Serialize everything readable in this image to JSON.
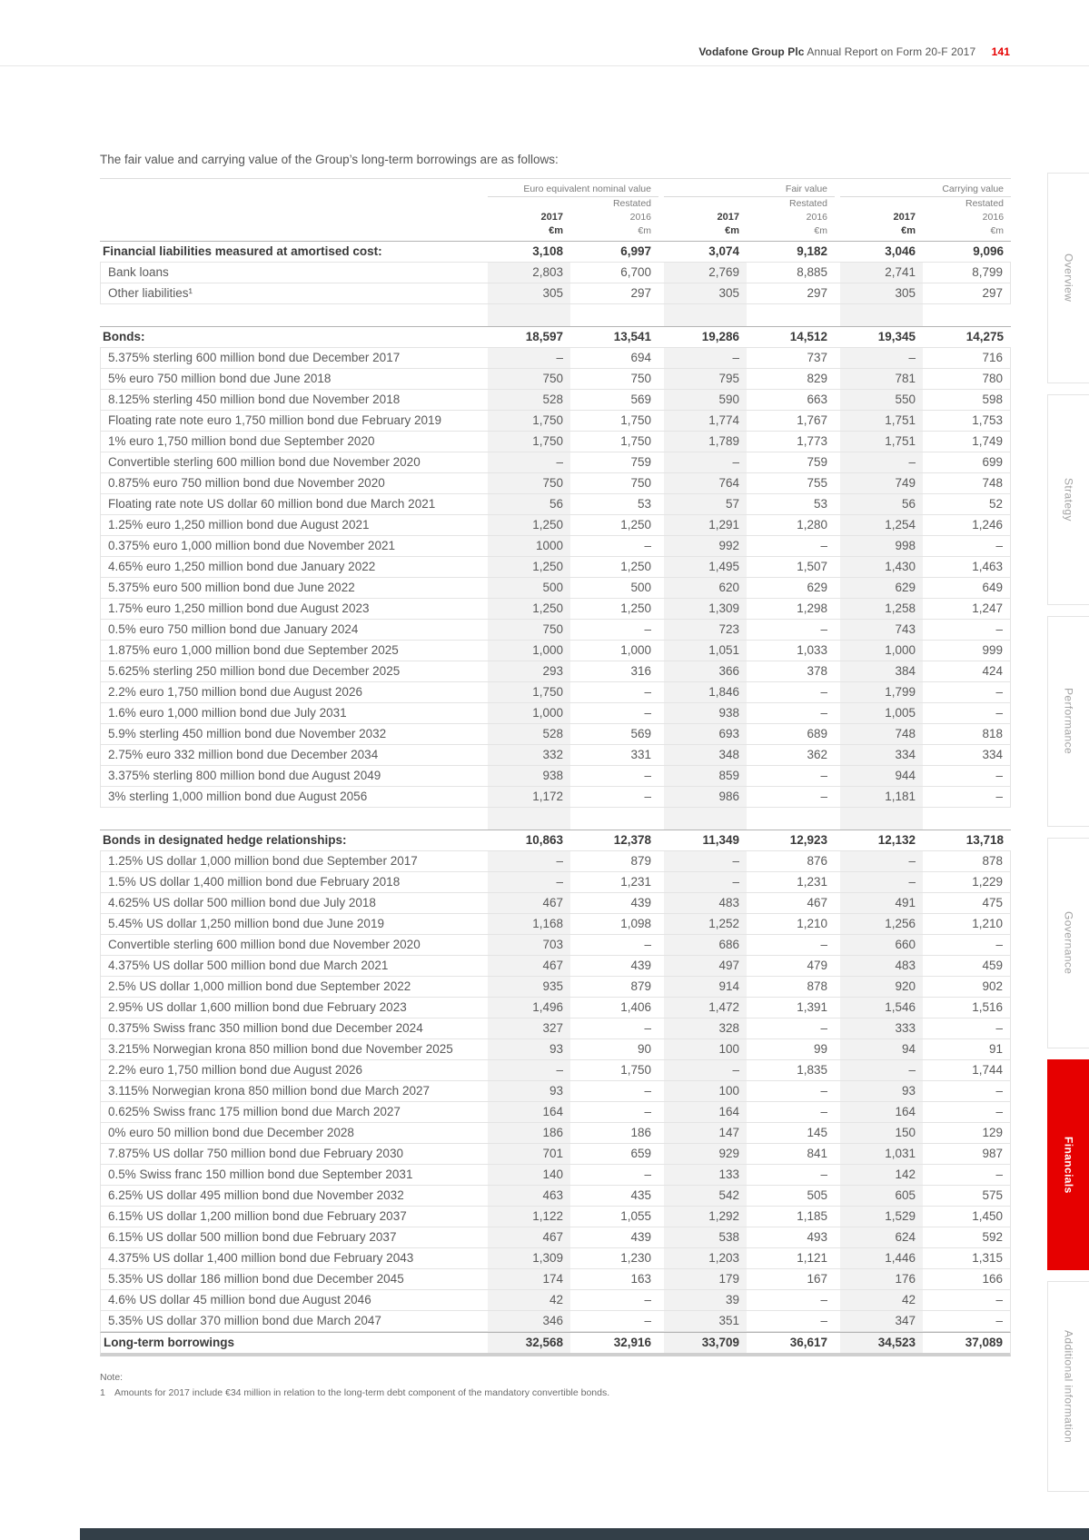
{
  "page_header": {
    "brand": "Vodafone Group Plc",
    "title": "Annual Report on Form 20-F 2017",
    "page_number": "141"
  },
  "intro": "The fair value and carrying value of the Group’s long-term borrowings are as follows:",
  "colors": {
    "accent_red": "#e60000",
    "column_shade": "#f2f2f2",
    "footer_bar": "#333f48"
  },
  "table": {
    "group_headers": [
      "Euro equivalent nominal value",
      "Fair value",
      "Carrying value"
    ],
    "restated_label": "Restated",
    "years": [
      "2017",
      "2016"
    ],
    "unit": "€m",
    "rows": [
      {
        "type": "section",
        "label": "Financial liabilities measured at amortised cost:",
        "values": [
          "3,108",
          "6,997",
          "3,074",
          "9,182",
          "3,046",
          "9,096"
        ]
      },
      {
        "type": "item",
        "label": "Bank loans",
        "values": [
          "2,803",
          "6,700",
          "2,769",
          "8,885",
          "2,741",
          "8,799"
        ]
      },
      {
        "type": "item",
        "label": "Other liabilities¹",
        "values": [
          "305",
          "297",
          "305",
          "297",
          "305",
          "297"
        ]
      },
      {
        "type": "spacer"
      },
      {
        "type": "section",
        "label": "Bonds:",
        "values": [
          "18,597",
          "13,541",
          "19,286",
          "14,512",
          "19,345",
          "14,275"
        ]
      },
      {
        "type": "item",
        "label": "5.375% sterling 600 million bond due December 2017",
        "values": [
          "–",
          "694",
          "–",
          "737",
          "–",
          "716"
        ]
      },
      {
        "type": "item",
        "label": "5% euro 750 million bond due June 2018",
        "values": [
          "750",
          "750",
          "795",
          "829",
          "781",
          "780"
        ]
      },
      {
        "type": "item",
        "label": "8.125% sterling 450 million bond due November 2018",
        "values": [
          "528",
          "569",
          "590",
          "663",
          "550",
          "598"
        ]
      },
      {
        "type": "item",
        "label": "Floating rate note euro 1,750 million bond due February 2019",
        "values": [
          "1,750",
          "1,750",
          "1,774",
          "1,767",
          "1,751",
          "1,753"
        ]
      },
      {
        "type": "item",
        "label": "1% euro 1,750 million bond due September 2020",
        "values": [
          "1,750",
          "1,750",
          "1,789",
          "1,773",
          "1,751",
          "1,749"
        ]
      },
      {
        "type": "item",
        "label": "Convertible sterling 600 million bond due November 2020",
        "values": [
          "–",
          "759",
          "–",
          "759",
          "–",
          "699"
        ]
      },
      {
        "type": "item",
        "label": "0.875% euro 750 million bond due November 2020",
        "values": [
          "750",
          "750",
          "764",
          "755",
          "749",
          "748"
        ]
      },
      {
        "type": "item",
        "label": "Floating rate note US dollar 60 million bond due March 2021",
        "values": [
          "56",
          "53",
          "57",
          "53",
          "56",
          "52"
        ]
      },
      {
        "type": "item",
        "label": "1.25% euro 1,250 million bond due August 2021",
        "values": [
          "1,250",
          "1,250",
          "1,291",
          "1,280",
          "1,254",
          "1,246"
        ]
      },
      {
        "type": "item",
        "label": "0.375% euro 1,000 million bond due November 2021",
        "values": [
          "1000",
          "–",
          "992",
          "–",
          "998",
          "–"
        ]
      },
      {
        "type": "item",
        "label": "4.65% euro 1,250 million bond due January 2022",
        "values": [
          "1,250",
          "1,250",
          "1,495",
          "1,507",
          "1,430",
          "1,463"
        ]
      },
      {
        "type": "item",
        "label": "5.375% euro 500 million bond due June 2022",
        "values": [
          "500",
          "500",
          "620",
          "629",
          "629",
          "649"
        ]
      },
      {
        "type": "item",
        "label": "1.75% euro 1,250 million bond due August 2023",
        "values": [
          "1,250",
          "1,250",
          "1,309",
          "1,298",
          "1,258",
          "1,247"
        ]
      },
      {
        "type": "item",
        "label": "0.5% euro 750 million bond due January 2024",
        "values": [
          "750",
          "–",
          "723",
          "–",
          "743",
          "–"
        ]
      },
      {
        "type": "item",
        "label": "1.875% euro 1,000 million bond due September 2025",
        "values": [
          "1,000",
          "1,000",
          "1,051",
          "1,033",
          "1,000",
          "999"
        ]
      },
      {
        "type": "item",
        "label": "5.625% sterling 250 million bond due December 2025",
        "values": [
          "293",
          "316",
          "366",
          "378",
          "384",
          "424"
        ]
      },
      {
        "type": "item",
        "label": "2.2% euro 1,750 million bond due August 2026",
        "values": [
          "1,750",
          "–",
          "1,846",
          "–",
          "1,799",
          "–"
        ]
      },
      {
        "type": "item",
        "label": "1.6% euro 1,000 million bond due July 2031",
        "values": [
          "1,000",
          "–",
          "938",
          "–",
          "1,005",
          "–"
        ]
      },
      {
        "type": "item",
        "label": "5.9% sterling 450 million bond due November 2032",
        "values": [
          "528",
          "569",
          "693",
          "689",
          "748",
          "818"
        ]
      },
      {
        "type": "item",
        "label": "2.75% euro 332 million bond due December 2034",
        "values": [
          "332",
          "331",
          "348",
          "362",
          "334",
          "334"
        ]
      },
      {
        "type": "item",
        "label": "3.375% sterling 800 million bond due August 2049",
        "values": [
          "938",
          "–",
          "859",
          "–",
          "944",
          "–"
        ]
      },
      {
        "type": "item",
        "label": "3% sterling 1,000 million bond due August 2056",
        "values": [
          "1,172",
          "–",
          "986",
          "–",
          "1,181",
          "–"
        ]
      },
      {
        "type": "spacer"
      },
      {
        "type": "section",
        "label": "Bonds in designated hedge relationships:",
        "values": [
          "10,863",
          "12,378",
          "11,349",
          "12,923",
          "12,132",
          "13,718"
        ]
      },
      {
        "type": "item",
        "label": "1.25% US dollar 1,000 million bond due September 2017",
        "values": [
          "–",
          "879",
          "–",
          "876",
          "–",
          "878"
        ]
      },
      {
        "type": "item",
        "label": "1.5% US dollar 1,400 million bond due February 2018",
        "values": [
          "–",
          "1,231",
          "–",
          "1,231",
          "–",
          "1,229"
        ]
      },
      {
        "type": "item",
        "label": "4.625% US dollar 500 million bond due July 2018",
        "values": [
          "467",
          "439",
          "483",
          "467",
          "491",
          "475"
        ]
      },
      {
        "type": "item",
        "label": "5.45% US dollar 1,250 million bond due June 2019",
        "values": [
          "1,168",
          "1,098",
          "1,252",
          "1,210",
          "1,256",
          "1,210"
        ]
      },
      {
        "type": "item",
        "label": "Convertible sterling 600 million bond due November 2020",
        "values": [
          "703",
          "–",
          "686",
          "–",
          "660",
          "–"
        ]
      },
      {
        "type": "item",
        "label": "4.375% US dollar 500 million bond due March 2021",
        "values": [
          "467",
          "439",
          "497",
          "479",
          "483",
          "459"
        ]
      },
      {
        "type": "item",
        "label": "2.5% US dollar 1,000 million bond due September 2022",
        "values": [
          "935",
          "879",
          "914",
          "878",
          "920",
          "902"
        ]
      },
      {
        "type": "item",
        "label": "2.95% US dollar 1,600 million bond due February 2023",
        "values": [
          "1,496",
          "1,406",
          "1,472",
          "1,391",
          "1,546",
          "1,516"
        ]
      },
      {
        "type": "item",
        "label": "0.375% Swiss franc 350 million bond due December 2024",
        "values": [
          "327",
          "–",
          "328",
          "–",
          "333",
          "–"
        ]
      },
      {
        "type": "item",
        "label": "3.215% Norwegian krona 850 million bond due November 2025",
        "values": [
          "93",
          "90",
          "100",
          "99",
          "94",
          "91"
        ]
      },
      {
        "type": "item",
        "label": "2.2% euro 1,750 million bond due August 2026",
        "values": [
          "–",
          "1,750",
          "–",
          "1,835",
          "–",
          "1,744"
        ]
      },
      {
        "type": "item",
        "label": "3.115% Norwegian krona 850 million bond due March 2027",
        "values": [
          "93",
          "–",
          "100",
          "–",
          "93",
          "–"
        ]
      },
      {
        "type": "item",
        "label": "0.625% Swiss franc 175 million bond due March 2027",
        "values": [
          "164",
          "–",
          "164",
          "–",
          "164",
          "–"
        ]
      },
      {
        "type": "item",
        "label": "0% euro 50 million bond due December 2028",
        "values": [
          "186",
          "186",
          "147",
          "145",
          "150",
          "129"
        ]
      },
      {
        "type": "item",
        "label": "7.875% US dollar 750 million bond due February 2030",
        "values": [
          "701",
          "659",
          "929",
          "841",
          "1,031",
          "987"
        ]
      },
      {
        "type": "item",
        "label": "0.5% Swiss franc 150 million bond due September 2031",
        "values": [
          "140",
          "–",
          "133",
          "–",
          "142",
          "–"
        ]
      },
      {
        "type": "item",
        "label": "6.25% US dollar 495 million bond due November 2032",
        "values": [
          "463",
          "435",
          "542",
          "505",
          "605",
          "575"
        ]
      },
      {
        "type": "item",
        "label": "6.15% US dollar 1,200 million bond due February 2037",
        "values": [
          "1,122",
          "1,055",
          "1,292",
          "1,185",
          "1,529",
          "1,450"
        ]
      },
      {
        "type": "item",
        "label": "6.15% US dollar 500 million bond due February 2037",
        "values": [
          "467",
          "439",
          "538",
          "493",
          "624",
          "592"
        ]
      },
      {
        "type": "item",
        "label": "4.375% US dollar 1,400 million bond due February 2043",
        "values": [
          "1,309",
          "1,230",
          "1,203",
          "1,121",
          "1,446",
          "1,315"
        ]
      },
      {
        "type": "item",
        "label": "5.35% US dollar 186 million bond due December 2045",
        "values": [
          "174",
          "163",
          "179",
          "167",
          "176",
          "166"
        ]
      },
      {
        "type": "item",
        "label": "4.6% US dollar 45 million bond due August 2046",
        "values": [
          "42",
          "–",
          "39",
          "–",
          "42",
          "–"
        ]
      },
      {
        "type": "item",
        "label": "5.35% US dollar 370 million bond due March 2047",
        "values": [
          "346",
          "–",
          "351",
          "–",
          "347",
          "–"
        ]
      },
      {
        "type": "total",
        "label": "Long-term borrowings",
        "values": [
          "32,568",
          "32,916",
          "33,709",
          "36,617",
          "34,523",
          "37,089"
        ]
      }
    ]
  },
  "note": {
    "heading": "Note:",
    "items": [
      {
        "num": "1",
        "text": "Amounts for 2017 include €34 million in relation to the long-term debt component of the mandatory convertible bonds."
      }
    ]
  },
  "sidebar": {
    "tabs": [
      {
        "label": "Overview",
        "active": false
      },
      {
        "label": "Strategy",
        "active": false
      },
      {
        "label": "Performance",
        "active": false
      },
      {
        "label": "Governance",
        "active": false
      },
      {
        "label": "Financials",
        "active": true
      },
      {
        "label": "Additional information",
        "active": false
      }
    ]
  }
}
